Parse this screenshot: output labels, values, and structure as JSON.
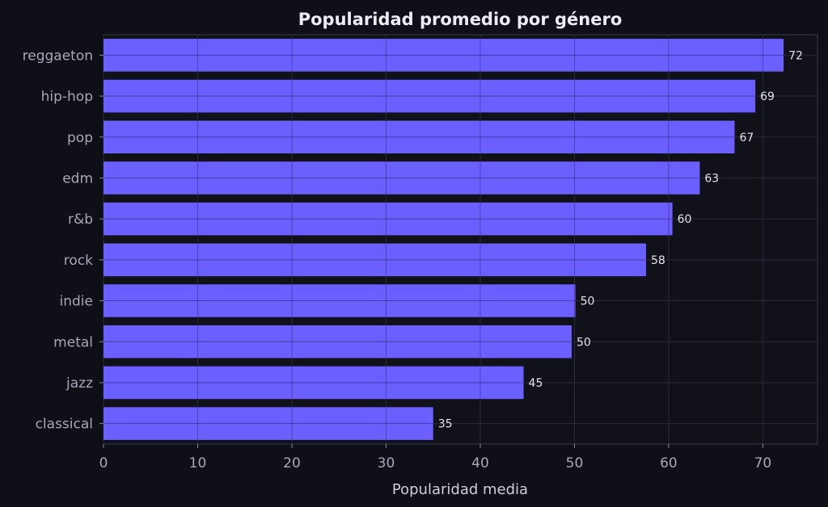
{
  "chart_data": {
    "type": "bar",
    "orientation": "horizontal",
    "title": "Popularidad promedio por género",
    "xlabel": "Popularidad media",
    "ylabel": "",
    "categories": [
      "reggaeton",
      "hip-hop",
      "pop",
      "edm",
      "r&b",
      "rock",
      "indie",
      "metal",
      "jazz",
      "classical"
    ],
    "values": [
      72.2,
      69.2,
      67.0,
      63.3,
      60.4,
      57.6,
      50.1,
      49.7,
      44.6,
      35.0
    ],
    "data_labels": [
      "72",
      "69",
      "67",
      "63",
      "60",
      "58",
      "50",
      "50",
      "45",
      "35"
    ],
    "xlim": [
      0,
      75.8
    ],
    "xticks": [
      0,
      10,
      20,
      30,
      40,
      50,
      60,
      70
    ],
    "grid": true,
    "colors": {
      "background": "#0f0f17",
      "plot_background": "#11111a",
      "bar": "#6c5fff",
      "grid": "#2a2a3a",
      "axis": "#3a3a4a"
    }
  }
}
